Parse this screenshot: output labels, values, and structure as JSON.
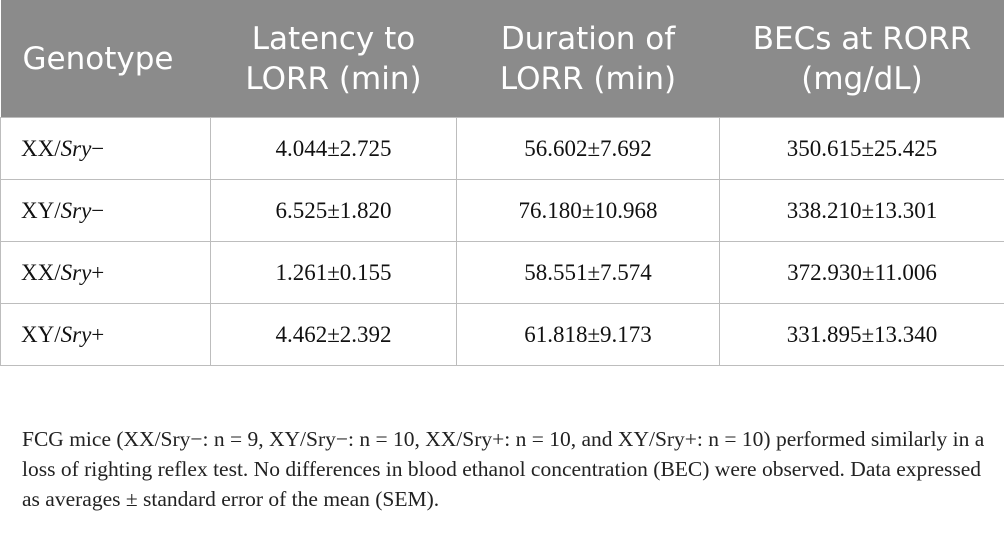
{
  "table": {
    "headers": [
      "Genotype",
      "Latency to LORR (min)",
      "Duration of LORR (min)",
      "BECs at RORR (mg/dL)"
    ],
    "rows": [
      {
        "genotype_prefix": "XX/",
        "genotype_italic": "Sry",
        "genotype_suffix": "−",
        "latency": "4.044±2.725",
        "duration": "56.602±7.692",
        "becs": "350.615±25.425"
      },
      {
        "genotype_prefix": "XY/",
        "genotype_italic": "Sry",
        "genotype_suffix": "−",
        "latency": "6.525±1.820",
        "duration": "76.180±10.968",
        "becs": "338.210±13.301"
      },
      {
        "genotype_prefix": "XX/",
        "genotype_italic": "Sry",
        "genotype_suffix": "+",
        "latency": "1.261±0.155",
        "duration": "58.551±7.574",
        "becs": "372.930±11.006"
      },
      {
        "genotype_prefix": "XY/",
        "genotype_italic": "Sry",
        "genotype_suffix": "+",
        "latency": "4.462±2.392",
        "duration": "61.818±9.173",
        "becs": "331.895±13.340"
      }
    ]
  },
  "caption": "FCG mice (XX/Sry−: n = 9, XY/Sry−: n = 10, XX/Sry+: n = 10, and XY/Sry+: n = 10) performed similarly in a loss of righting reflex test. No differences in blood ethanol concentration (BEC) were observed. Data expressed as averages ± standard error of the mean (SEM)."
}
